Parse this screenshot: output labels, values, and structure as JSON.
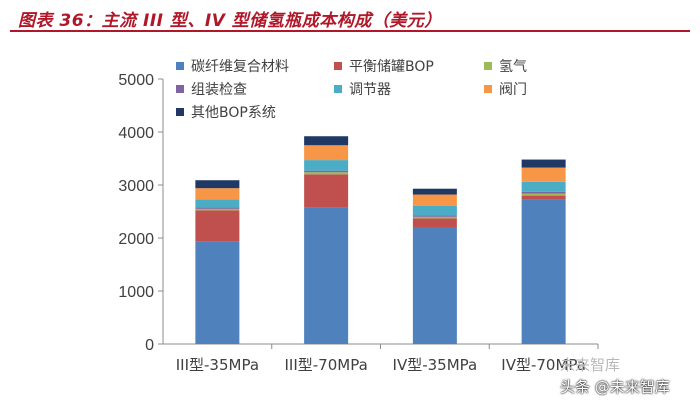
{
  "header": {
    "title": "图表 36：主流 III 型、IV 型储氢瓶成本构成（美元）"
  },
  "watermark": {
    "top": "未来智库",
    "bottom": "头条 @未来智库"
  },
  "chart_data": {
    "type": "bar",
    "stacked": true,
    "title": "",
    "xlabel": "",
    "ylabel": "",
    "categories": [
      "III型-35MPa",
      "III型-70MPa",
      "IV型-35MPa",
      "IV型-70MPa"
    ],
    "ylim": [
      0,
      5000
    ],
    "yticks": [
      0,
      1000,
      2000,
      3000,
      4000,
      5000
    ],
    "grid": false,
    "legend_position": "top-left",
    "series": [
      {
        "name": "碳纤维复合材料",
        "color": "#4f81bd",
        "values": [
          1930,
          2570,
          2190,
          2720
        ]
      },
      {
        "name": "平衡储罐BOP",
        "color": "#c0504d",
        "values": [
          590,
          630,
          180,
          80
        ]
      },
      {
        "name": "氢气",
        "color": "#9bbb59",
        "values": [
          30,
          40,
          30,
          40
        ]
      },
      {
        "name": "组装检查",
        "color": "#8064a2",
        "values": [
          30,
          30,
          30,
          30
        ]
      },
      {
        "name": "调节器",
        "color": "#4bacc6",
        "values": [
          150,
          200,
          180,
          190
        ]
      },
      {
        "name": "阀门",
        "color": "#f79646",
        "values": [
          210,
          280,
          210,
          270
        ]
      },
      {
        "name": "其他BOP系统",
        "color": "#1f3864",
        "values": [
          150,
          170,
          110,
          150
        ]
      }
    ]
  }
}
